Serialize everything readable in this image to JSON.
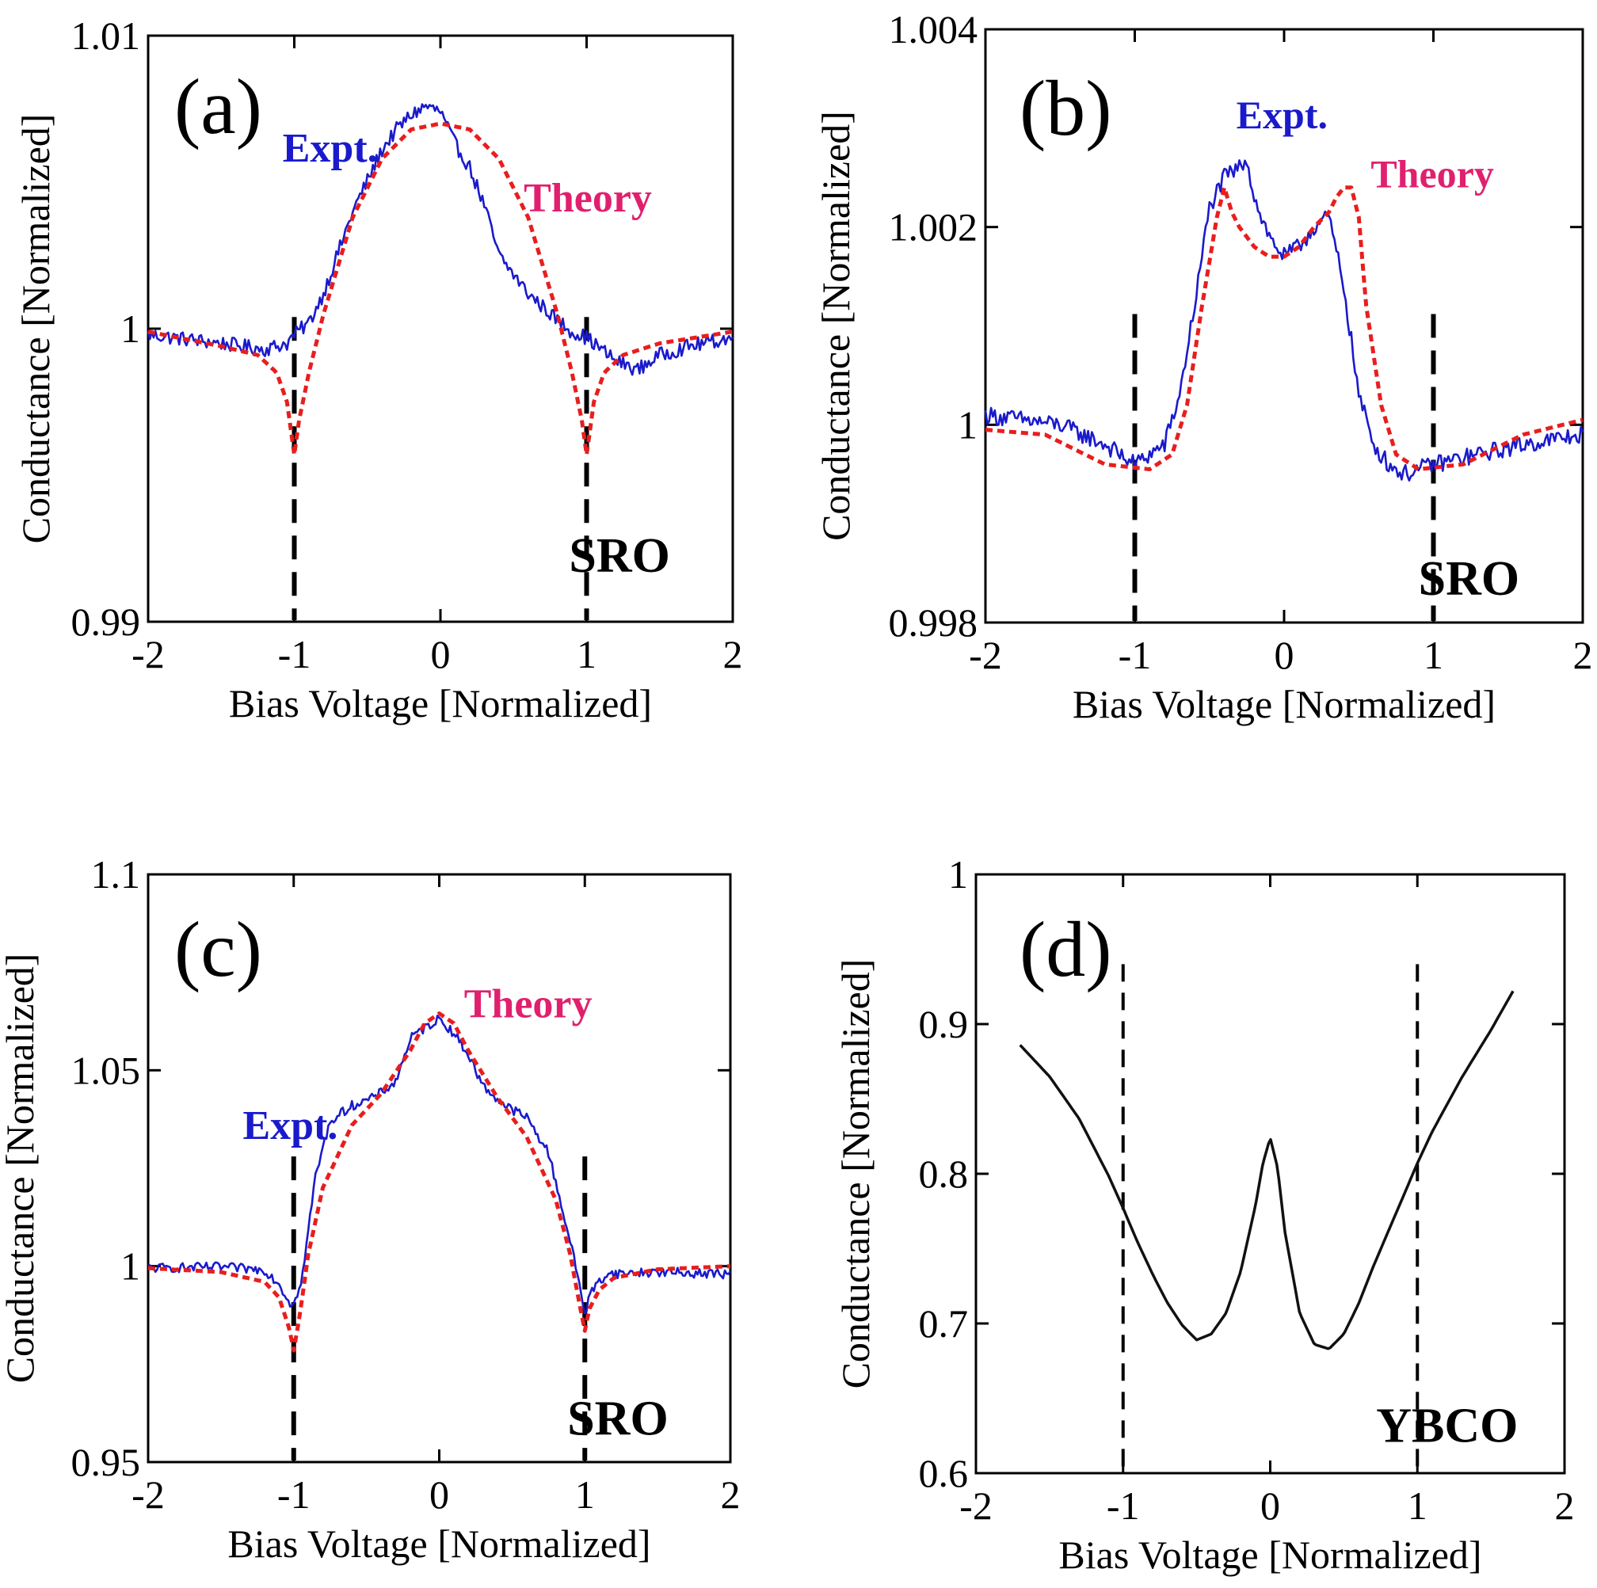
{
  "colors": {
    "expt": "#1a1acc",
    "theory": "#e81e1e",
    "theory_label": "#e0206e",
    "ybco": "#111111",
    "marker": "#000000"
  },
  "chart_data": [
    {
      "id": "a",
      "type": "line",
      "panel_label": "(a)",
      "sample": "SRO",
      "xlabel": "Bias Voltage [Normalized]",
      "ylabel": "Conductance [Normalized]",
      "xlim": [
        -2,
        2
      ],
      "ylim": [
        0.99,
        1.01
      ],
      "xticks": [
        -2,
        -1,
        0,
        1,
        2
      ],
      "xtick_labels": [
        "-2",
        "-1",
        "0",
        "1",
        "2"
      ],
      "yticks": [
        0.99,
        1,
        1.01
      ],
      "ytick_labels": [
        "0.99",
        "1",
        "1.01"
      ],
      "markers": [
        -1,
        1
      ],
      "series": [
        {
          "name": "Expt.",
          "style": "solid",
          "noise": 0.00025,
          "x": [
            -2,
            -1.5,
            -1.2,
            -1.05,
            -1.0,
            -0.9,
            -0.8,
            -0.6,
            -0.4,
            -0.3,
            -0.2,
            -0.1,
            0,
            0.1,
            0.2,
            0.3,
            0.4,
            0.6,
            0.8,
            0.9,
            1.0,
            1.1,
            1.2,
            1.35,
            1.5,
            1.7,
            2.0
          ],
          "y": [
            0.9998,
            0.9995,
            0.9993,
            0.9995,
            0.9998,
            1.0002,
            1.0012,
            1.004,
            1.0061,
            1.0068,
            1.0073,
            1.0076,
            1.0074,
            1.0063,
            1.0055,
            1.0042,
            1.0025,
            1.0012,
            1.0003,
            0.9999,
            0.9997,
            0.9993,
            0.9989,
            0.9986,
            0.9991,
            0.9994,
            0.9997
          ]
        },
        {
          "name": "Theory",
          "style": "dashed",
          "noise": 0,
          "x": [
            -2,
            -1.5,
            -1.25,
            -1.12,
            -1.05,
            -1.0,
            -0.97,
            -0.9,
            -0.8,
            -0.6,
            -0.4,
            -0.2,
            0,
            0.2,
            0.4,
            0.6,
            0.8,
            0.9,
            0.97,
            1.0,
            1.05,
            1.12,
            1.25,
            1.5,
            2.0
          ],
          "y": [
            0.9999,
            0.9994,
            0.9991,
            0.9985,
            0.9975,
            0.9957,
            0.9968,
            0.9985,
            1.0005,
            1.0038,
            1.0058,
            1.0068,
            1.007,
            1.0068,
            1.0058,
            1.0038,
            1.0005,
            0.9985,
            0.9968,
            0.9957,
            0.9975,
            0.9985,
            0.9991,
            0.9995,
            0.9999
          ]
        }
      ],
      "annotations": [
        {
          "text": "Expt.",
          "x": -1.08,
          "y": 1.0057,
          "size": 52,
          "color": "expt"
        },
        {
          "text": "Theory",
          "x": 0.57,
          "y": 1.004,
          "size": 52,
          "color": "theory_label"
        },
        {
          "text": "SRO",
          "x": 0.88,
          "y": 0.9917,
          "size": 62,
          "color": "marker"
        }
      ]
    },
    {
      "id": "b",
      "type": "line",
      "panel_label": "(b)",
      "sample": "SRO",
      "xlabel": "Bias Voltage [Normalized]",
      "ylabel": "Conductance [Normalized]",
      "xlim": [
        -2,
        2
      ],
      "ylim": [
        0.998,
        1.004
      ],
      "xticks": [
        -2,
        -1,
        0,
        1,
        2
      ],
      "xtick_labels": [
        "-2",
        "-1",
        "0",
        "1",
        "2"
      ],
      "yticks": [
        0.998,
        1,
        1.002,
        1.004
      ],
      "ytick_labels": [
        "0.998",
        "1",
        "1.002",
        "1.004"
      ],
      "markers": [
        -1,
        1
      ],
      "series": [
        {
          "name": "Expt.",
          "style": "solid",
          "noise": 9e-05,
          "x": [
            -2,
            -1.5,
            -1.2,
            -1.0,
            -0.8,
            -0.7,
            -0.6,
            -0.5,
            -0.4,
            -0.3,
            -0.25,
            -0.2,
            -0.1,
            0,
            0.1,
            0.2,
            0.3,
            0.4,
            0.5,
            0.6,
            0.7,
            0.8,
            1.0,
            1.3,
            1.6,
            2.0
          ],
          "y": [
            1.0001,
            1.0,
            0.9998,
            0.9996,
            0.9998,
            1.0003,
            1.0012,
            1.0022,
            1.0025,
            1.0026,
            1.0027,
            1.0023,
            1.0019,
            1.0017,
            1.0018,
            1.002,
            1.0021,
            1.0014,
            1.0003,
            0.9998,
            0.9996,
            0.9995,
            0.9996,
            0.9997,
            0.9998,
            0.9999
          ]
        },
        {
          "name": "Theory",
          "style": "dashed",
          "noise": 0,
          "x": [
            -2,
            -1.6,
            -1.4,
            -1.2,
            -0.9,
            -0.75,
            -0.65,
            -0.55,
            -0.45,
            -0.4,
            -0.35,
            -0.3,
            -0.2,
            -0.1,
            0,
            0.1,
            0.2,
            0.3,
            0.35,
            0.4,
            0.45,
            0.5,
            0.55,
            0.65,
            0.75,
            0.9,
            1.2,
            1.6,
            2.0
          ],
          "y": [
            0.99995,
            0.9999,
            0.99975,
            0.9996,
            0.99955,
            0.9997,
            1.0002,
            1.0012,
            1.0021,
            1.0024,
            1.00215,
            1.002,
            1.0018,
            1.0017,
            1.0017,
            1.0018,
            1.002,
            1.00215,
            1.0023,
            1.0024,
            1.0024,
            1.0021,
            1.0012,
            1.0002,
            0.9997,
            0.99955,
            0.9996,
            0.9999,
            1.00005
          ]
        }
      ],
      "annotations": [
        {
          "text": "Expt.",
          "x": -0.32,
          "y": 1.003,
          "size": 50,
          "color": "expt"
        },
        {
          "text": "Theory",
          "x": 0.58,
          "y": 1.0024,
          "size": 50,
          "color": "theory_label"
        },
        {
          "text": "SRO",
          "x": 0.9,
          "y": 0.99828,
          "size": 62,
          "color": "marker"
        }
      ]
    },
    {
      "id": "c",
      "type": "line",
      "panel_label": "(c)",
      "sample": "SRO",
      "xlabel": "Bias Voltage [Normalized]",
      "ylabel": "Conductance [Normalized]",
      "xlim": [
        -2,
        2
      ],
      "ylim": [
        0.95,
        1.1
      ],
      "xticks": [
        -2,
        -1,
        0,
        1,
        2
      ],
      "xtick_labels": [
        "-2",
        "-1",
        "0",
        "1",
        "2"
      ],
      "yticks": [
        0.95,
        1,
        1.05,
        1.1
      ],
      "ytick_labels": [
        "0.95",
        "1",
        "1.05",
        "1.1"
      ],
      "markers": [
        -1,
        1
      ],
      "series": [
        {
          "name": "Expt.",
          "style": "solid",
          "noise": 0.0012,
          "x": [
            -2,
            -1.5,
            -1.2,
            -1.1,
            -1.02,
            -0.95,
            -0.85,
            -0.75,
            -0.6,
            -0.45,
            -0.3,
            -0.2,
            -0.1,
            0,
            0.1,
            0.2,
            0.3,
            0.45,
            0.6,
            0.75,
            0.85,
            0.95,
            1.0,
            1.05,
            1.15,
            1.5,
            2.0
          ],
          "y": [
            0.9995,
            0.9998,
            0.999,
            0.9955,
            0.99,
            0.995,
            1.023,
            1.037,
            1.041,
            1.043,
            1.047,
            1.058,
            1.0608,
            1.0632,
            1.0595,
            1.054,
            1.046,
            1.041,
            1.038,
            1.029,
            1.014,
            0.998,
            0.988,
            0.994,
            0.998,
            0.9985,
            0.998
          ]
        },
        {
          "name": "Theory",
          "style": "dashed",
          "noise": 0,
          "x": [
            -2,
            -1.5,
            -1.2,
            -1.1,
            -1.03,
            -1.0,
            -0.96,
            -0.9,
            -0.8,
            -0.6,
            -0.4,
            -0.2,
            -0.1,
            0,
            0.1,
            0.2,
            0.4,
            0.6,
            0.8,
            0.9,
            0.96,
            1.0,
            1.03,
            1.1,
            1.2,
            1.5,
            2.0
          ],
          "y": [
            0.9995,
            0.9985,
            0.996,
            0.992,
            0.984,
            0.9785,
            0.987,
            1.003,
            1.02,
            1.036,
            1.044,
            1.055,
            1.062,
            1.0645,
            1.062,
            1.055,
            1.043,
            1.033,
            1.017,
            1.003,
            0.991,
            0.9835,
            0.989,
            0.994,
            0.997,
            0.9992,
            1.0
          ]
        }
      ],
      "annotations": [
        {
          "text": "Expt.",
          "x": -1.35,
          "y": 1.0325,
          "size": 52,
          "color": "expt"
        },
        {
          "text": "Theory",
          "x": 0.17,
          "y": 1.0635,
          "size": 52,
          "color": "theory_label"
        },
        {
          "text": "SRO",
          "x": 0.88,
          "y": 0.957,
          "size": 62,
          "color": "marker"
        }
      ]
    },
    {
      "id": "d",
      "type": "line",
      "panel_label": "(d)",
      "sample": "YBCO",
      "xlabel": "Bias Voltage [Normalized]",
      "ylabel": "Conductance [Normalized]",
      "xlim": [
        -2,
        2
      ],
      "ylim": [
        0.6,
        1
      ],
      "xticks": [
        -2,
        -1,
        0,
        1,
        2
      ],
      "xtick_labels": [
        "-2",
        "-1",
        "0",
        "1",
        "2"
      ],
      "yticks": [
        0.6,
        0.7,
        0.8,
        0.9,
        1
      ],
      "ytick_labels": [
        "0.6",
        "0.7",
        "0.8",
        "0.9",
        "1"
      ],
      "markers": [
        -1,
        1
      ],
      "series": [
        {
          "name": "",
          "style": "solid",
          "noise": 0,
          "x": [
            -1.7,
            -1.5,
            -1.3,
            -1.1,
            -1.0,
            -0.9,
            -0.8,
            -0.7,
            -0.6,
            -0.5,
            -0.4,
            -0.3,
            -0.2,
            -0.1,
            -0.05,
            0,
            0.05,
            0.1,
            0.2,
            0.3,
            0.4,
            0.5,
            0.6,
            0.7,
            0.8,
            0.9,
            1.0,
            1.1,
            1.3,
            1.5,
            1.65
          ],
          "y": [
            0.886,
            0.865,
            0.837,
            0.799,
            0.777,
            0.754,
            0.733,
            0.714,
            0.699,
            0.689,
            0.693,
            0.707,
            0.735,
            0.779,
            0.807,
            0.824,
            0.804,
            0.761,
            0.707,
            0.686,
            0.683,
            0.693,
            0.713,
            0.738,
            0.761,
            0.784,
            0.807,
            0.828,
            0.864,
            0.896,
            0.922
          ]
        }
      ],
      "annotations": [
        {
          "text": "YBCO",
          "x": 0.72,
          "y": 0.621,
          "size": 62,
          "color": "marker"
        }
      ]
    }
  ]
}
